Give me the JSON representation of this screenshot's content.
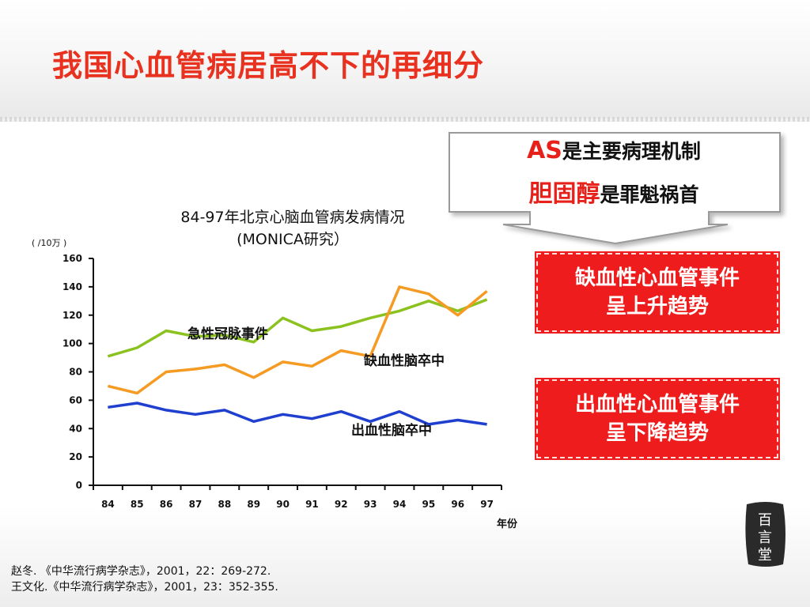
{
  "title": "我国心血管病居高不下的再细分",
  "callout": {
    "line1_prefix": "AS",
    "line1_text": "是主要病理机制",
    "line2_prefix": "胆固醇",
    "line2_text": "是罪魁祸首"
  },
  "boxes": {
    "box1_line1": "缺血性心血管事件",
    "box1_line2": "呈上升趋势",
    "box2_line1": "出血性心血管事件",
    "box2_line2": "呈下降趋势"
  },
  "references": {
    "ref1": "赵冬. 《中华流行病学杂志》，2001，22：269-272.",
    "ref2": "王文化.《中华流行病学杂志》，2001，23：352-355."
  },
  "logo_text": "百言堂",
  "colors": {
    "title": "#e8311f",
    "box_fill": "#ee1c1c",
    "acute_coronary": "#8cc21f",
    "ischemic_stroke": "#f59a23",
    "hemorrhagic_stroke": "#1f3fcf"
  },
  "chart_data": {
    "type": "line",
    "title": "84-97年北京心脑血管病发病情况",
    "subtitle": "(MONICA研究）",
    "ylabel": "( /10万 )",
    "xlabel": "年份",
    "ylim": [
      0,
      160
    ],
    "yticks": [
      0,
      20,
      40,
      60,
      80,
      100,
      120,
      140,
      160
    ],
    "x": [
      "84",
      "85",
      "86",
      "87",
      "88",
      "89",
      "90",
      "91",
      "92",
      "93",
      "94",
      "95",
      "96",
      "97"
    ],
    "grid": false,
    "legend": "inline annotations",
    "series": [
      {
        "name": "急性冠脉事件",
        "color": "#8cc21f",
        "values": [
          91,
          97,
          109,
          105,
          106,
          101,
          118,
          109,
          112,
          118,
          123,
          130,
          123,
          131
        ]
      },
      {
        "name": "缺血性脑卒中",
        "color": "#f59a23",
        "values": [
          70,
          65,
          80,
          82,
          85,
          76,
          87,
          84,
          95,
          91,
          140,
          135,
          120,
          137
        ]
      },
      {
        "name": "出血性脑卒中",
        "color": "#1f3fcf",
        "values": [
          55,
          58,
          53,
          50,
          53,
          45,
          50,
          47,
          52,
          45,
          52,
          43,
          46,
          43
        ]
      }
    ]
  }
}
